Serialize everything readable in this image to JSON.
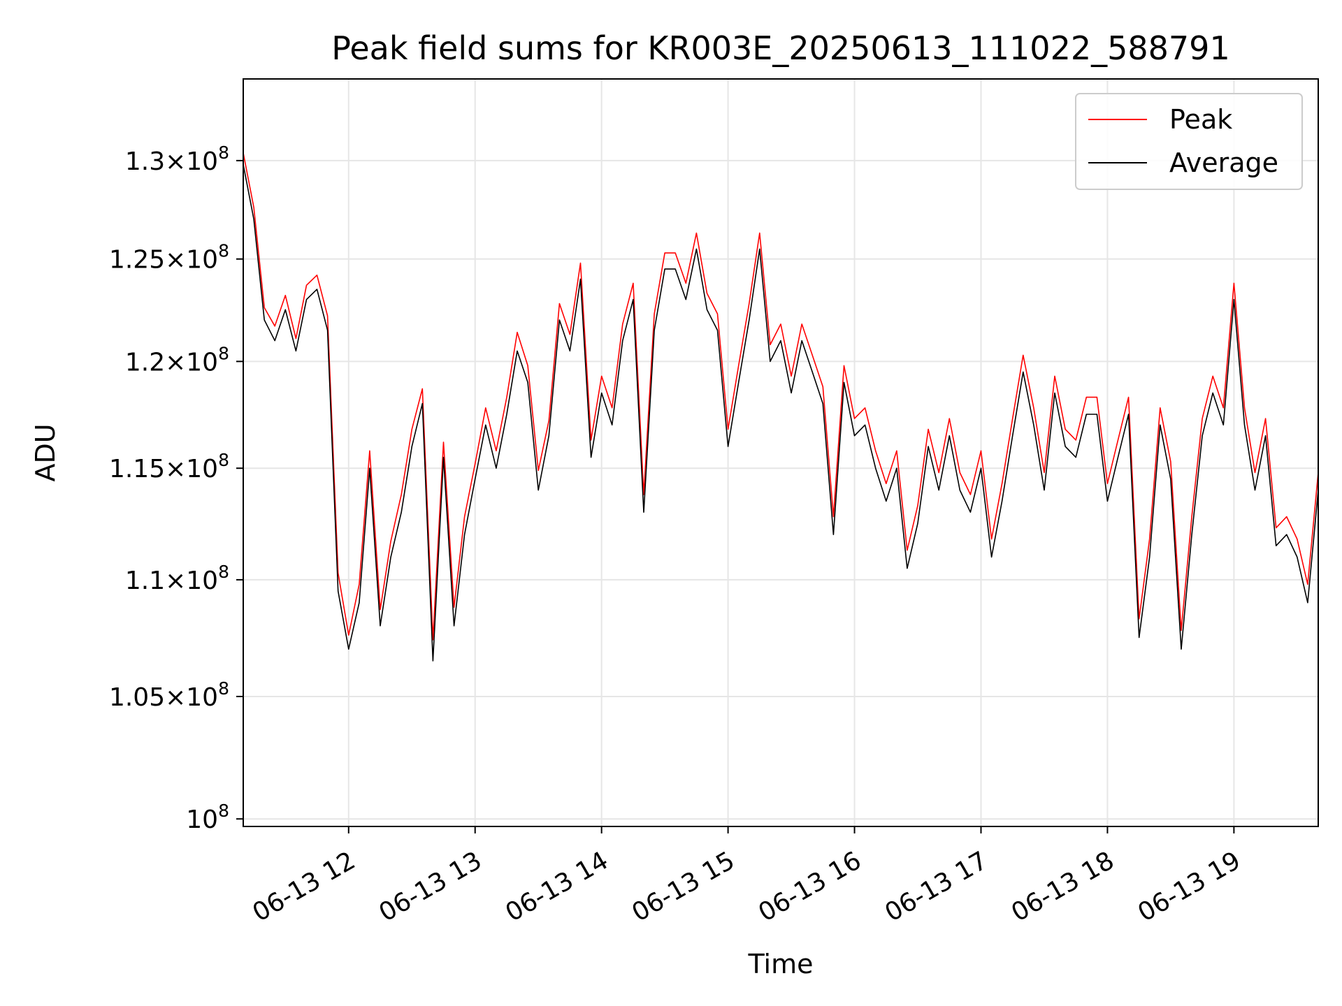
{
  "chart_data": {
    "type": "line",
    "title": "Peak field sums for KR003E_20250613_111022_588791",
    "xlabel": "Time",
    "ylabel": "ADU",
    "y_scale": "log",
    "ylim": [
      99700000,
      134300000
    ],
    "xlim": [
      "2025-06-13 11:10",
      "2025-06-13 19:40"
    ],
    "grid": true,
    "legend_position": "top-right",
    "x_ticks": [
      {
        "label": "06-13 12",
        "time": "2025-06-13 12:00"
      },
      {
        "label": "06-13 13",
        "time": "2025-06-13 13:00"
      },
      {
        "label": "06-13 14",
        "time": "2025-06-13 14:00"
      },
      {
        "label": "06-13 15",
        "time": "2025-06-13 15:00"
      },
      {
        "label": "06-13 16",
        "time": "2025-06-13 16:00"
      },
      {
        "label": "06-13 17",
        "time": "2025-06-13 17:00"
      },
      {
        "label": "06-13 18",
        "time": "2025-06-13 18:00"
      },
      {
        "label": "06-13 19",
        "time": "2025-06-13 19:00"
      }
    ],
    "y_ticks": [
      {
        "value": 100000000,
        "mantissa": "",
        "exponent": "8"
      },
      {
        "value": 105000000,
        "mantissa": "1.05",
        "exponent": "8"
      },
      {
        "value": 110000000,
        "mantissa": "1.1",
        "exponent": "8"
      },
      {
        "value": 115000000,
        "mantissa": "1.15",
        "exponent": "8"
      },
      {
        "value": 120000000,
        "mantissa": "1.2",
        "exponent": "8"
      },
      {
        "value": 125000000,
        "mantissa": "1.25",
        "exponent": "8"
      },
      {
        "value": 130000000,
        "mantissa": "1.3",
        "exponent": "8"
      }
    ],
    "series": [
      {
        "name": "Peak",
        "color": "#ff0000"
      },
      {
        "name": "Average",
        "color": "#000000"
      }
    ],
    "x": [
      "11:10",
      "11:15",
      "11:20",
      "11:25",
      "11:30",
      "11:35",
      "11:40",
      "11:45",
      "11:50",
      "11:55",
      "12:00",
      "12:05",
      "12:10",
      "12:15",
      "12:20",
      "12:25",
      "12:30",
      "12:35",
      "12:40",
      "12:45",
      "12:50",
      "12:55",
      "13:00",
      "13:05",
      "13:10",
      "13:15",
      "13:20",
      "13:25",
      "13:30",
      "13:35",
      "13:40",
      "13:45",
      "13:50",
      "13:55",
      "14:00",
      "14:05",
      "14:10",
      "14:15",
      "14:20",
      "14:25",
      "14:30",
      "14:35",
      "14:40",
      "14:45",
      "14:50",
      "14:55",
      "15:00",
      "15:05",
      "15:10",
      "15:15",
      "15:20",
      "15:25",
      "15:30",
      "15:35",
      "15:40",
      "15:45",
      "15:50",
      "15:55",
      "16:00",
      "16:05",
      "16:10",
      "16:15",
      "16:20",
      "16:25",
      "16:30",
      "16:35",
      "16:40",
      "16:45",
      "16:50",
      "16:55",
      "17:00",
      "17:05",
      "17:10",
      "17:15",
      "17:20",
      "17:25",
      "17:30",
      "17:35",
      "17:40",
      "17:45",
      "17:50",
      "17:55",
      "18:00",
      "18:05",
      "18:10",
      "18:15",
      "18:20",
      "18:25",
      "18:30",
      "18:35",
      "18:40",
      "18:45",
      "18:50",
      "18:55",
      "19:00",
      "19:05",
      "19:10",
      "19:15",
      "19:20",
      "19:25",
      "19:30",
      "19:35",
      "19:40"
    ],
    "values_avg": [
      129.8,
      127.0,
      122.0,
      121.0,
      122.5,
      120.5,
      123.0,
      123.5,
      121.5,
      109.5,
      107.0,
      109.0,
      115.0,
      108.0,
      111.0,
      113.0,
      116.0,
      118.0,
      106.5,
      115.5,
      108.0,
      112.0,
      114.5,
      117.0,
      115.0,
      117.5,
      120.5,
      119.0,
      114.0,
      116.5,
      122.0,
      120.5,
      124.0,
      115.5,
      118.5,
      117.0,
      121.0,
      123.0,
      113.0,
      121.5,
      124.5,
      124.5,
      123.0,
      125.5,
      122.5,
      121.5,
      116.0,
      119.0,
      122.0,
      125.5,
      120.0,
      121.0,
      118.5,
      121.0,
      119.5,
      118.0,
      112.0,
      119.0,
      116.5,
      117.0,
      115.0,
      113.5,
      115.0,
      110.5,
      112.5,
      116.0,
      114.0,
      116.5,
      114.0,
      113.0,
      115.0,
      111.0,
      113.5,
      116.5,
      119.5,
      117.0,
      114.0,
      118.5,
      116.0,
      115.5,
      117.5,
      117.5,
      113.5,
      115.5,
      117.5,
      107.5,
      111.0,
      117.0,
      114.5,
      107.0,
      112.0,
      116.5,
      118.5,
      117.0,
      123.0,
      117.0,
      114.0,
      116.5,
      111.5,
      112.0,
      111.0,
      109.0,
      114.0
    ],
    "values_peak": [
      130.4,
      127.6,
      122.6,
      121.7,
      123.2,
      121.1,
      123.7,
      124.2,
      122.2,
      110.3,
      107.6,
      109.8,
      115.8,
      108.7,
      111.7,
      113.8,
      116.8,
      118.7,
      107.4,
      116.2,
      108.8,
      112.8,
      115.2,
      117.8,
      115.8,
      118.3,
      121.4,
      119.8,
      114.9,
      117.2,
      122.8,
      121.3,
      124.8,
      116.3,
      119.3,
      117.8,
      121.8,
      123.8,
      113.8,
      122.3,
      125.3,
      125.3,
      123.8,
      126.3,
      123.3,
      122.3,
      116.8,
      119.8,
      122.8,
      126.3,
      120.8,
      121.8,
      119.3,
      121.8,
      120.3,
      118.8,
      112.8,
      119.8,
      117.3,
      117.8,
      115.8,
      114.3,
      115.8,
      111.3,
      113.3,
      116.8,
      114.8,
      117.3,
      114.8,
      113.8,
      115.8,
      111.8,
      114.3,
      117.3,
      120.3,
      117.8,
      114.8,
      119.3,
      116.8,
      116.3,
      118.3,
      118.3,
      114.3,
      116.3,
      118.3,
      108.3,
      111.8,
      117.8,
      115.3,
      107.8,
      112.8,
      117.3,
      119.3,
      117.8,
      123.8,
      117.8,
      114.8,
      117.3,
      112.3,
      112.8,
      111.8,
      109.8,
      114.8
    ],
    "values_unit": "million ADU"
  }
}
